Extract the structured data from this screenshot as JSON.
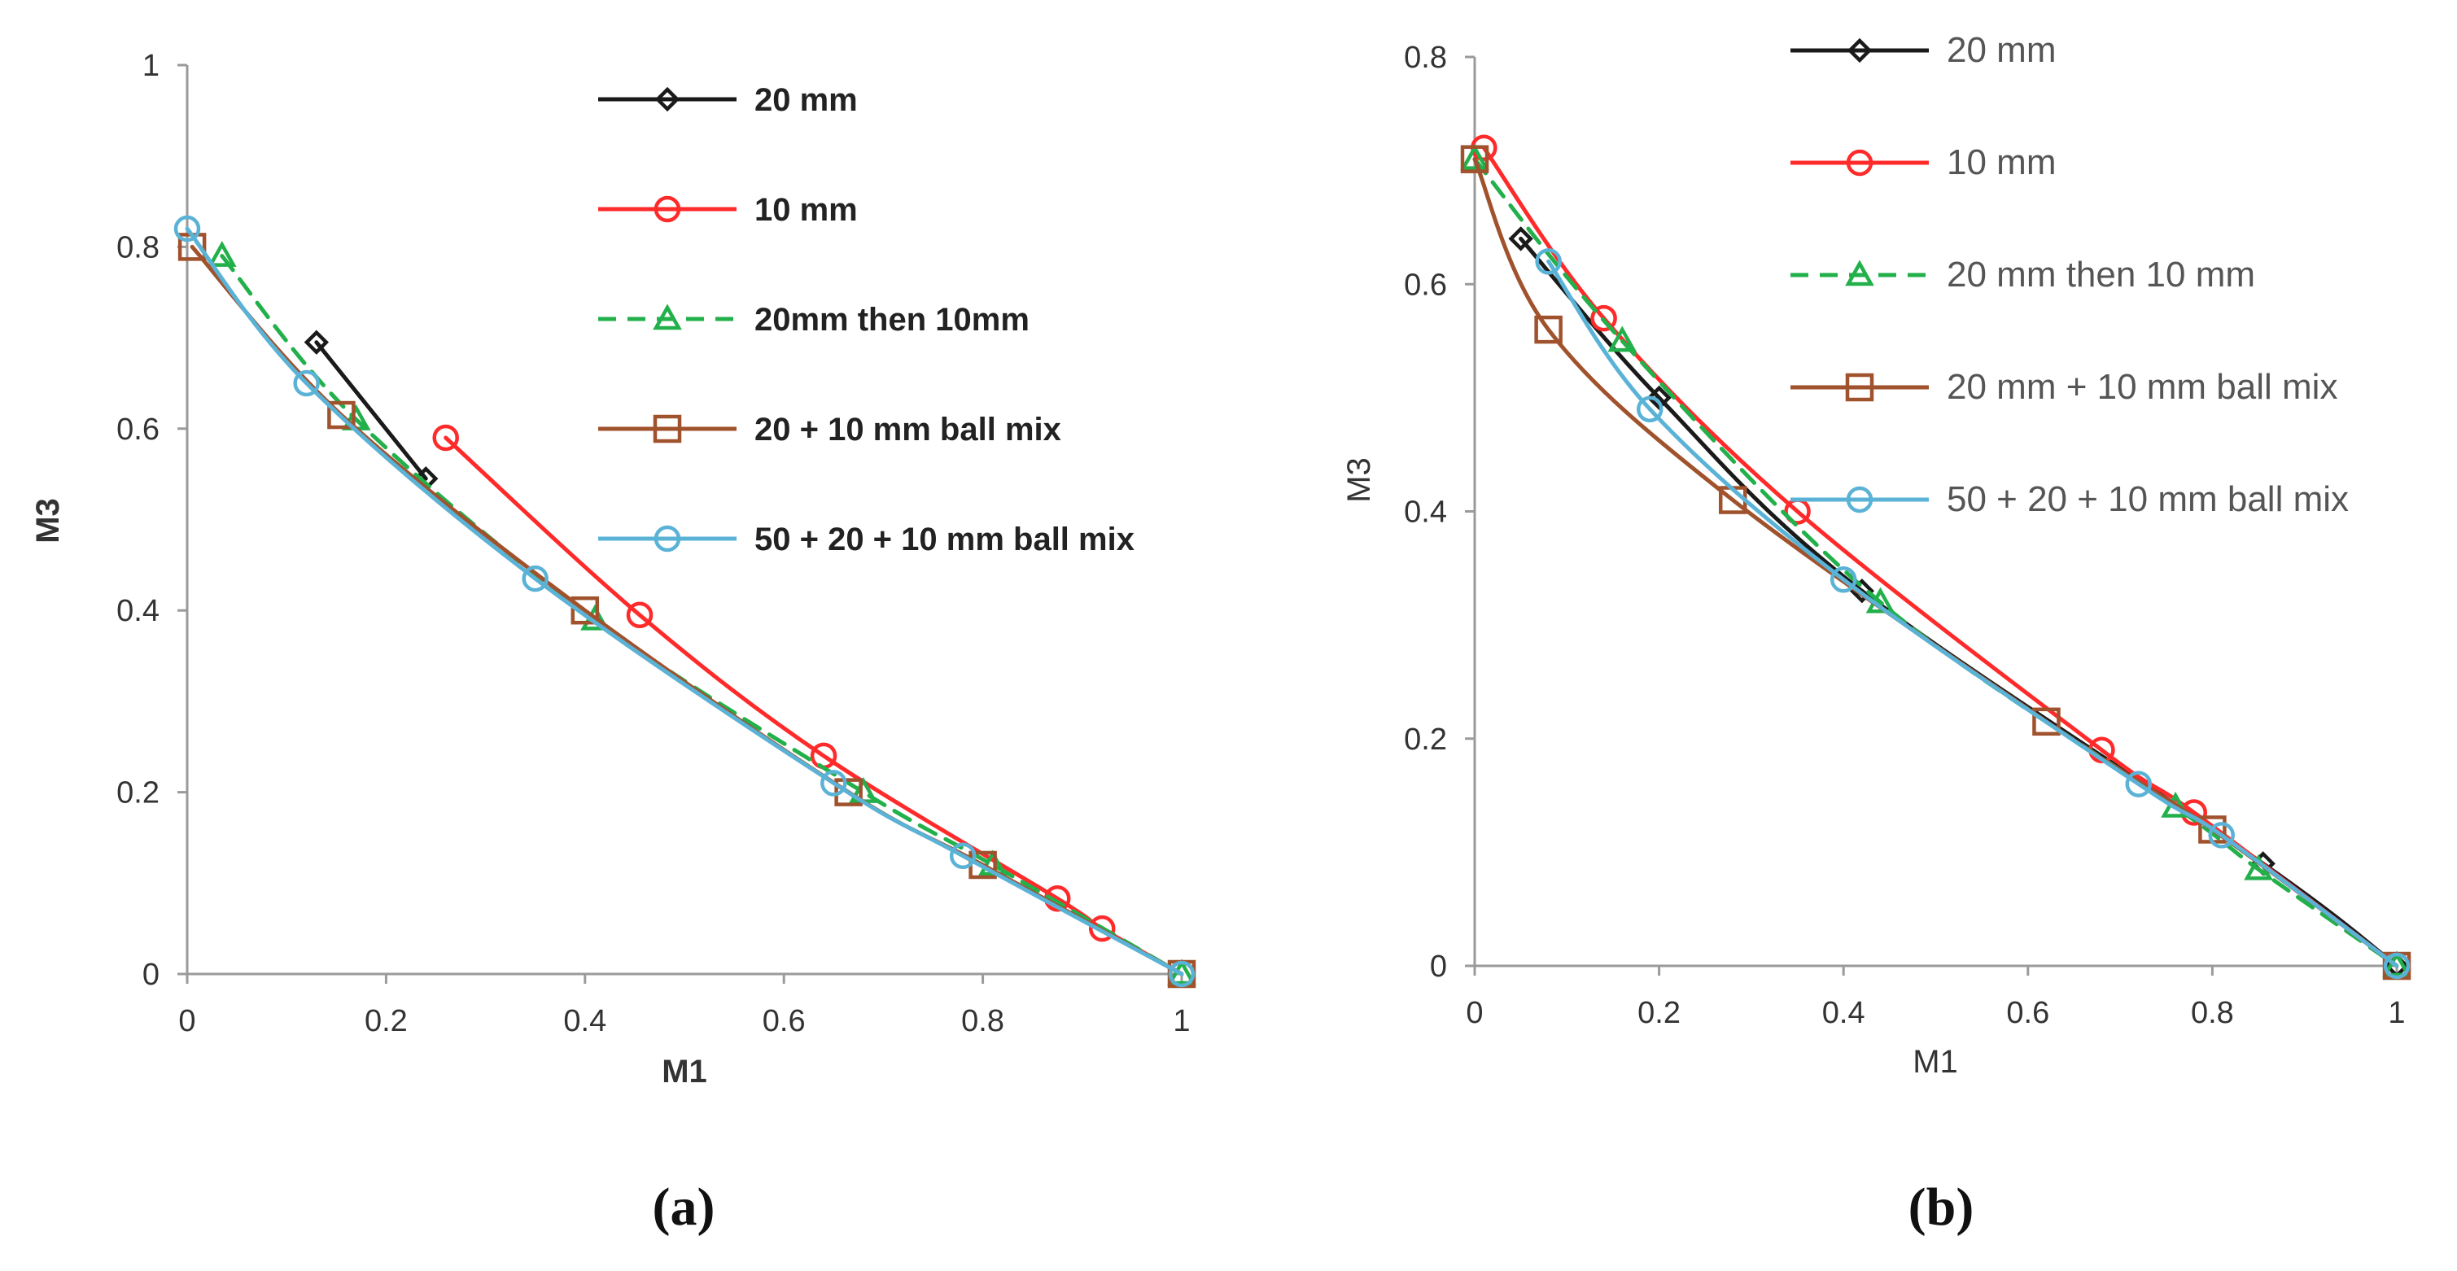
{
  "chart_data": [
    {
      "type": "line",
      "panel_label": "(a)",
      "xlabel": "M1",
      "ylabel": "M3",
      "xlim": [
        0,
        1
      ],
      "ylim": [
        0,
        1
      ],
      "xticks": [
        "0",
        "0.2",
        "0.4",
        "0.6",
        "0.8",
        "1"
      ],
      "yticks": [
        "0",
        "0.2",
        "0.4",
        "0.6",
        "0.8",
        "1"
      ],
      "xtick_values": [
        0,
        0.2,
        0.4,
        0.6,
        0.8,
        1
      ],
      "ytick_values": [
        0,
        0.2,
        0.4,
        0.6,
        0.8,
        1
      ],
      "grid": false,
      "legend_position": "top-right",
      "series": [
        {
          "name": "20 mm",
          "color": "#1a1a1a",
          "marker": "diamond",
          "dash": "solid",
          "points": [
            [
              0.13,
              0.695
            ],
            [
              0.24,
              0.545
            ]
          ]
        },
        {
          "name": "10 mm",
          "color": "#ff2a2a",
          "marker": "circle",
          "dash": "solid",
          "points": [
            [
              0.26,
              0.59
            ],
            [
              0.455,
              0.395
            ],
            [
              0.64,
              0.24
            ],
            [
              0.875,
              0.083
            ],
            [
              0.92,
              0.05
            ],
            [
              1.0,
              0.0
            ]
          ]
        },
        {
          "name": "20mm then 10mm",
          "color": "#22b04b",
          "marker": "triangle",
          "dash": "dashed",
          "points": [
            [
              0.035,
              0.79
            ],
            [
              0.17,
              0.61
            ],
            [
              0.41,
              0.39
            ],
            [
              0.68,
              0.2
            ],
            [
              0.81,
              0.12
            ],
            [
              1.0,
              0.0
            ]
          ]
        },
        {
          "name": "20 + 10 mm ball mix",
          "color": "#a0522d",
          "marker": "square",
          "dash": "solid",
          "points": [
            [
              0.005,
              0.8
            ],
            [
              0.155,
              0.615
            ],
            [
              0.4,
              0.4
            ],
            [
              0.665,
              0.2
            ],
            [
              0.8,
              0.12
            ],
            [
              1.0,
              0.0
            ]
          ]
        },
        {
          "name": "50 + 20 + 10 mm ball mix",
          "color": "#5ab3d6",
          "marker": "circle",
          "dash": "solid",
          "points": [
            [
              0.0,
              0.82
            ],
            [
              0.12,
              0.65
            ],
            [
              0.35,
              0.435
            ],
            [
              0.65,
              0.21
            ],
            [
              0.78,
              0.13
            ],
            [
              1.0,
              0.0
            ]
          ]
        }
      ]
    },
    {
      "type": "line",
      "panel_label": "(b)",
      "xlabel": "M1",
      "ylabel": "M3",
      "xlim": [
        0,
        1
      ],
      "ylim": [
        0,
        0.8
      ],
      "xticks": [
        "0",
        "0.2",
        "0.4",
        "0.6",
        "0.8",
        "1"
      ],
      "yticks": [
        "0",
        "0.2",
        "0.4",
        "0.6",
        "0.8"
      ],
      "xtick_values": [
        0,
        0.2,
        0.4,
        0.6,
        0.8,
        1
      ],
      "ytick_values": [
        0,
        0.2,
        0.4,
        0.6,
        0.8
      ],
      "grid": false,
      "legend_position": "top-right",
      "series": [
        {
          "name": "20 mm",
          "color": "#1a1a1a",
          "marker": "diamond",
          "dash": "solid",
          "points": [
            [
              0.05,
              0.64
            ],
            [
              0.2,
              0.5
            ],
            [
              0.42,
              0.33
            ],
            [
              0.855,
              0.09
            ],
            [
              1.0,
              0.0
            ]
          ]
        },
        {
          "name": "10 mm",
          "color": "#ff2a2a",
          "marker": "circle",
          "dash": "solid",
          "points": [
            [
              0.01,
              0.72
            ],
            [
              0.14,
              0.57
            ],
            [
              0.35,
              0.4
            ],
            [
              0.68,
              0.19
            ],
            [
              0.78,
              0.135
            ],
            [
              1.0,
              0.0
            ]
          ]
        },
        {
          "name": "20 mm then 10 mm",
          "color": "#22b04b",
          "marker": "triangle",
          "dash": "dashed",
          "points": [
            [
              0.0,
              0.71
            ],
            [
              0.16,
              0.55
            ],
            [
              0.44,
              0.32
            ],
            [
              0.76,
              0.14
            ],
            [
              0.85,
              0.085
            ],
            [
              1.0,
              0.0
            ]
          ]
        },
        {
          "name": "20 mm + 10 mm ball mix",
          "color": "#a0522d",
          "marker": "square",
          "dash": "solid",
          "points": [
            [
              0.0,
              0.71
            ],
            [
              0.08,
              0.56
            ],
            [
              0.28,
              0.41
            ],
            [
              0.62,
              0.215
            ],
            [
              0.8,
              0.12
            ],
            [
              1.0,
              0.0
            ]
          ]
        },
        {
          "name": "50 + 20 + 10 mm ball mix",
          "color": "#5ab3d6",
          "marker": "circle",
          "dash": "solid",
          "points": [
            [
              0.08,
              0.62
            ],
            [
              0.19,
              0.49
            ],
            [
              0.4,
              0.34
            ],
            [
              0.72,
              0.16
            ],
            [
              0.81,
              0.115
            ],
            [
              1.0,
              0.0
            ]
          ]
        }
      ]
    }
  ]
}
